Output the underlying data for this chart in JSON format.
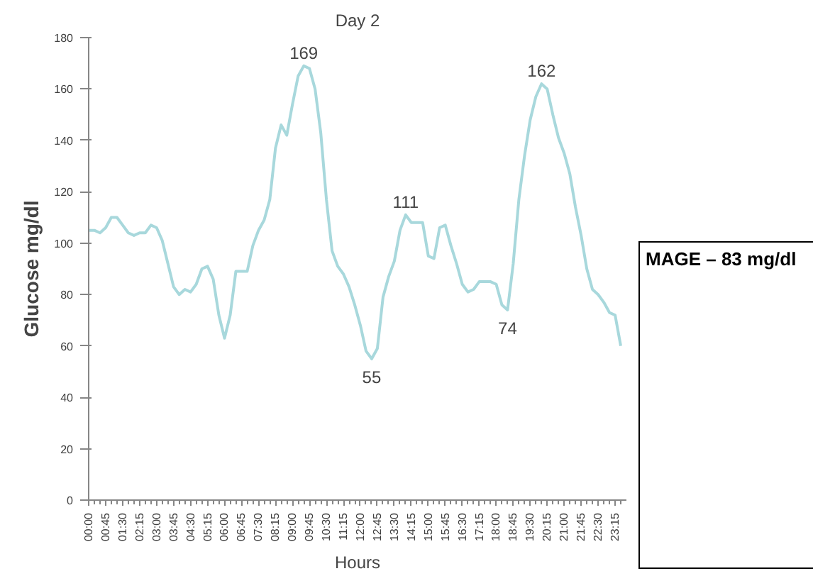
{
  "chart_data": {
    "type": "line",
    "title": "Day 2",
    "xlabel": "Hours",
    "ylabel": "Glucose mg/dl",
    "x": [
      0,
      0.25,
      0.5,
      0.75,
      1,
      1.25,
      1.5,
      1.75,
      2,
      2.25,
      2.5,
      2.75,
      3,
      3.25,
      3.5,
      3.75,
      4,
      4.25,
      4.5,
      4.75,
      5,
      5.25,
      5.5,
      5.75,
      6,
      6.25,
      6.5,
      6.75,
      7,
      7.25,
      7.5,
      7.75,
      8,
      8.25,
      8.5,
      8.75,
      9,
      9.25,
      9.5,
      9.75,
      10,
      10.25,
      10.5,
      10.75,
      11,
      11.25,
      11.5,
      11.75,
      12,
      12.25,
      12.5,
      12.75,
      13,
      13.25,
      13.5,
      13.75,
      14,
      14.25,
      14.5,
      14.75,
      15,
      15.25,
      15.5,
      15.75,
      16,
      16.25,
      16.5,
      16.75,
      17,
      17.25,
      17.5,
      17.75,
      18,
      18.25,
      18.5,
      18.75,
      19,
      19.25,
      19.5,
      19.75,
      20,
      20.25,
      20.5,
      20.75,
      21,
      21.25,
      21.5,
      21.75,
      22,
      22.25,
      22.5,
      22.75,
      23,
      23.25,
      23.5
    ],
    "series": [
      {
        "color": "#a8d8dc",
        "values": [
          105,
          105,
          104,
          106,
          110,
          110,
          107,
          104,
          103,
          104,
          104,
          107,
          106,
          101,
          92,
          83,
          80,
          82,
          81,
          84,
          90,
          91,
          86,
          72,
          63,
          72,
          89,
          89,
          89,
          99,
          105,
          109,
          117,
          137,
          146,
          142,
          154,
          165,
          169,
          168,
          160,
          143,
          117,
          97,
          91,
          88,
          83,
          76,
          68,
          58,
          55,
          59,
          79,
          87,
          93,
          105,
          111,
          108,
          108,
          108,
          95,
          94,
          106,
          107,
          99,
          92,
          84,
          81,
          82,
          85,
          85,
          85,
          84,
          76,
          74,
          92,
          117,
          134,
          148,
          157,
          162,
          160,
          150,
          141,
          135,
          127,
          114,
          103,
          90,
          82,
          80,
          77,
          73,
          72,
          60
        ]
      }
    ],
    "xlim": [
      0,
      23.75
    ],
    "ylim": [
      0,
      180
    ],
    "yticks": [
      0,
      20,
      40,
      60,
      80,
      100,
      120,
      140,
      160,
      180
    ],
    "xticks": [
      {
        "value": 0,
        "label": "00:00"
      },
      {
        "value": 0.75,
        "label": "00:45"
      },
      {
        "value": 1.5,
        "label": "01:30"
      },
      {
        "value": 2.25,
        "label": "02:15"
      },
      {
        "value": 3,
        "label": "03:00"
      },
      {
        "value": 3.75,
        "label": "03:45"
      },
      {
        "value": 4.5,
        "label": "04:30"
      },
      {
        "value": 5.25,
        "label": "05:15"
      },
      {
        "value": 6,
        "label": "06:00"
      },
      {
        "value": 6.75,
        "label": "06:45"
      },
      {
        "value": 7.5,
        "label": "07:30"
      },
      {
        "value": 8.25,
        "label": "08:15"
      },
      {
        "value": 9,
        "label": "09:00"
      },
      {
        "value": 9.75,
        "label": "09:45"
      },
      {
        "value": 10.5,
        "label": "10:30"
      },
      {
        "value": 11.25,
        "label": "11:15"
      },
      {
        "value": 12,
        "label": "12:00"
      },
      {
        "value": 12.75,
        "label": "12:45"
      },
      {
        "value": 13.5,
        "label": "13:30"
      },
      {
        "value": 14.25,
        "label": "14:15"
      },
      {
        "value": 15,
        "label": "15:00"
      },
      {
        "value": 15.75,
        "label": "15:45"
      },
      {
        "value": 16.5,
        "label": "16:30"
      },
      {
        "value": 17.25,
        "label": "17:15"
      },
      {
        "value": 18,
        "label": "18:00"
      },
      {
        "value": 18.75,
        "label": "18:45"
      },
      {
        "value": 19.5,
        "label": "19:30"
      },
      {
        "value": 20.25,
        "label": "20:15"
      },
      {
        "value": 21,
        "label": "21:00"
      },
      {
        "value": 21.75,
        "label": "21:45"
      },
      {
        "value": 22.5,
        "label": "22:30"
      },
      {
        "value": 23.25,
        "label": "23:15"
      }
    ],
    "annotations": [
      {
        "text": "169",
        "x": 9.5,
        "y": 169
      },
      {
        "text": "111",
        "x": 14,
        "y": 111
      },
      {
        "text": "55",
        "x": 12.5,
        "y": 55
      },
      {
        "text": "74",
        "x": 18.5,
        "y": 74
      },
      {
        "text": "162",
        "x": 20,
        "y": 162
      },
      "MAGE – 83 mg/dl"
    ],
    "grid": false,
    "marker": "none",
    "line_style": "solid"
  }
}
